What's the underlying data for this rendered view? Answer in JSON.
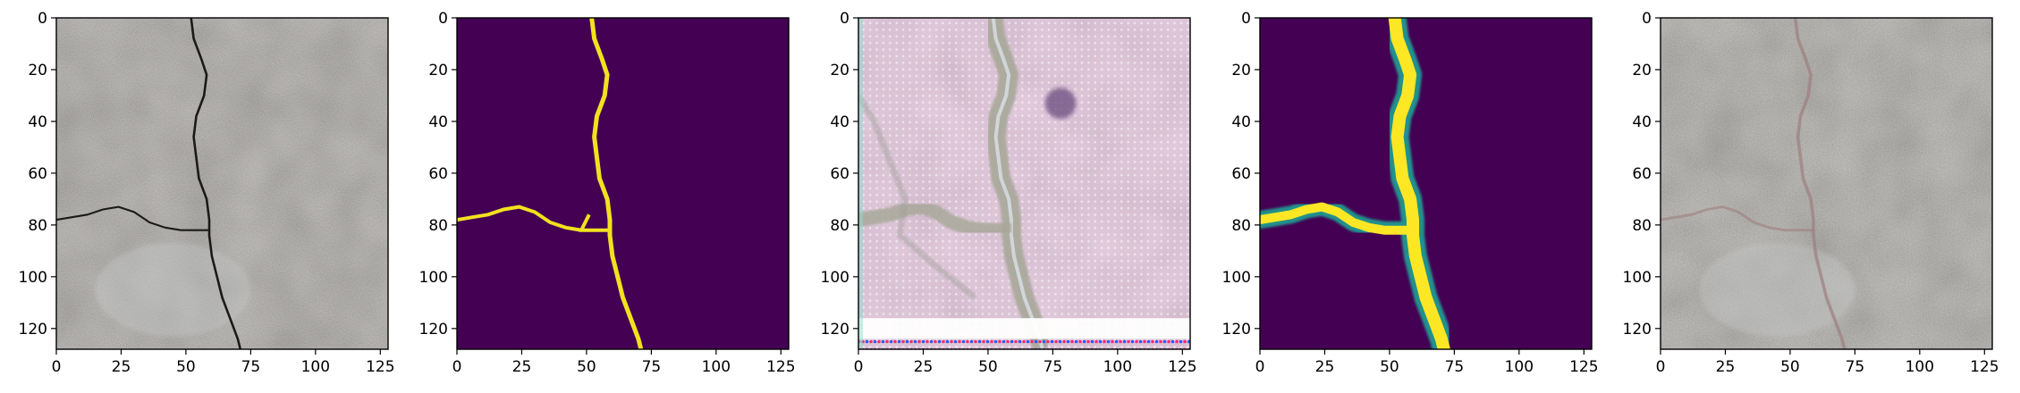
{
  "chart_data": [
    {
      "type": "image",
      "content": "grayscale concrete surface with a dark crack",
      "xlim": [
        0,
        128
      ],
      "ylim": [
        128,
        0
      ],
      "x_ticks": [
        "0",
        "25",
        "50",
        "75",
        "100",
        "125"
      ],
      "y_ticks": [
        "0",
        "20",
        "40",
        "60",
        "80",
        "100",
        "120"
      ],
      "colors": {
        "base": "#9a958f",
        "crack": "#1c1a17"
      }
    },
    {
      "type": "heatmap",
      "content": "binary crack mask (viridis)",
      "xlim": [
        0,
        128
      ],
      "ylim": [
        128,
        0
      ],
      "x_ticks": [
        "0",
        "25",
        "50",
        "75",
        "100",
        "125"
      ],
      "y_ticks": [
        "0",
        "20",
        "40",
        "60",
        "80",
        "100",
        "120"
      ],
      "colors": {
        "background": "#440154",
        "mask": "#f2e21e"
      }
    },
    {
      "type": "image",
      "content": "generated crack image with pink/magenta artifacts",
      "xlim": [
        0,
        128
      ],
      "ylim": [
        128,
        0
      ],
      "x_ticks": [
        "0",
        "25",
        "50",
        "75",
        "100",
        "125"
      ],
      "y_ticks": [
        "0",
        "20",
        "40",
        "60",
        "80",
        "100",
        "120"
      ],
      "colors": {
        "base": "#e3c6dd",
        "crack": "#a8a89a",
        "artifact": "#ffffff"
      }
    },
    {
      "type": "heatmap",
      "content": "smoothed crack probability map (viridis)",
      "xlim": [
        0,
        128
      ],
      "ylim": [
        128,
        0
      ],
      "x_ticks": [
        "0",
        "25",
        "50",
        "75",
        "100",
        "125"
      ],
      "y_ticks": [
        "0",
        "20",
        "40",
        "60",
        "80",
        "100",
        "120"
      ],
      "colors": {
        "background": "#440154",
        "edge": "#21918c",
        "core": "#fde725"
      }
    },
    {
      "type": "image",
      "content": "concrete surface with faint reddish crack overlay",
      "xlim": [
        0,
        128
      ],
      "ylim": [
        128,
        0
      ],
      "x_ticks": [
        "0",
        "25",
        "50",
        "75",
        "100",
        "125"
      ],
      "y_ticks": [
        "0",
        "20",
        "40",
        "60",
        "80",
        "100",
        "120"
      ],
      "colors": {
        "base": "#9e9a93",
        "crack": "#9c7f7d"
      }
    }
  ]
}
